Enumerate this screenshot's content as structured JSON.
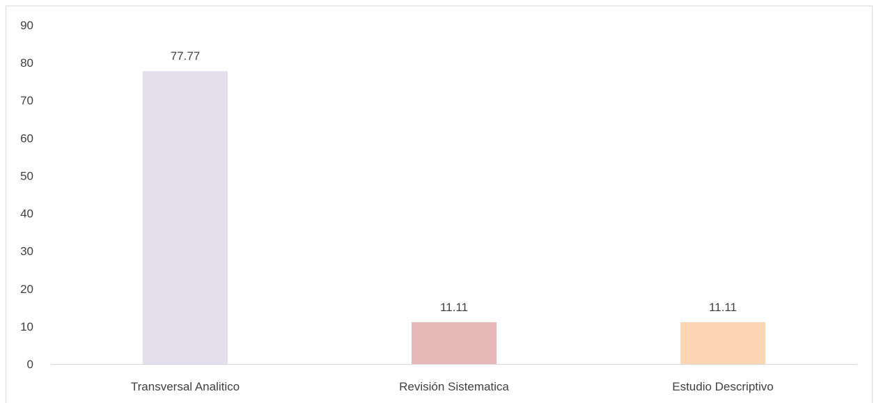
{
  "chart_data": {
    "type": "bar",
    "title": "",
    "xlabel": "",
    "ylabel": "",
    "categories": [
      "Transversal Analitico",
      "Revisión Sistematica",
      "Estudio Descriptivo"
    ],
    "values": [
      77.77,
      11.11,
      11.11
    ],
    "data_labels": [
      "77.77",
      "11.11",
      "11.11"
    ],
    "colors": [
      "#e4dfec",
      "#e6b8b7",
      "#fcd5b4"
    ],
    "ylim": [
      0,
      90
    ],
    "yticks": [
      "0",
      "10",
      "20",
      "30",
      "40",
      "50",
      "60",
      "70",
      "80",
      "90"
    ],
    "grid": false,
    "legend": "none"
  },
  "style": {
    "axis_color": "#d9d9d9",
    "text_color": "#404040"
  }
}
